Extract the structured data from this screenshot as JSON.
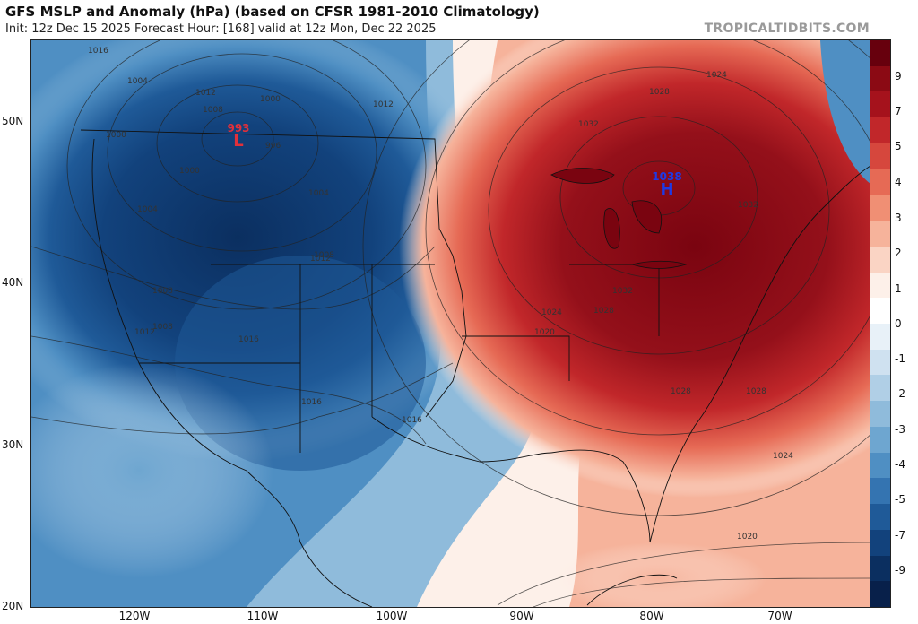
{
  "header": {
    "title": "GFS MSLP and Anomaly (hPa) (based on CFSR 1981-2010 Climatology)",
    "subtitle": "Init: 12z Dec 15 2025   Forecast Hour: [168]   valid at 12z Mon, Dec 22 2025",
    "brand": "TROPICALTIDBITS.COM"
  },
  "axes": {
    "lat_labels": [
      "50N",
      "40N",
      "30N",
      "20N"
    ],
    "lon_labels": [
      "120W",
      "110W",
      "100W",
      "90W",
      "80W",
      "70W"
    ]
  },
  "colorbar": {
    "labels": [
      "9",
      "7",
      "5",
      "4",
      "3",
      "2",
      "1",
      "0",
      "-1",
      "-2",
      "-3",
      "-4",
      "-5",
      "-7",
      "-9"
    ],
    "colors": [
      "#67000d",
      "#8b0a14",
      "#a5121c",
      "#c1272a",
      "#d6473d",
      "#e66a55",
      "#f08f74",
      "#f6b39b",
      "#fad4c4",
      "#fdf0e9",
      "#ffffff",
      "#e8f1f8",
      "#cfe1f0",
      "#b0cfe6",
      "#8fbbdb",
      "#6ea6d0",
      "#4f8fc3",
      "#3474b1",
      "#1f5a98",
      "#12427c",
      "#0b2f60",
      "#08204a"
    ]
  },
  "centers": [
    {
      "type": "L",
      "pressure": "993",
      "color": "#e0303a"
    },
    {
      "type": "H",
      "pressure": "1038",
      "color": "#1e3ae6"
    }
  ],
  "isobar_labels": [
    "1016",
    "1004",
    "1012",
    "1008",
    "1000",
    "996",
    "1000",
    "1012",
    "1000",
    "1004",
    "1008",
    "1004",
    "1008",
    "1012",
    "1008",
    "1012",
    "1016",
    "1016",
    "1016",
    "1024",
    "1020",
    "1028",
    "1028",
    "1032",
    "1032",
    "1028",
    "1024",
    "1032",
    "1028",
    "1024",
    "1020"
  ],
  "colors": {
    "low_anomaly": "#0b2f60",
    "high_anomaly": "#7a0410",
    "neutral": "#ffffff"
  }
}
